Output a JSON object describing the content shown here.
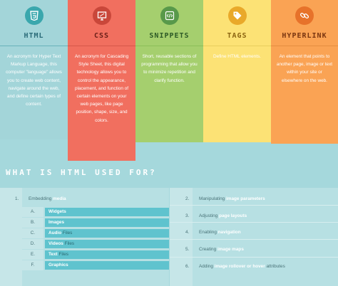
{
  "columns": [
    {
      "title": "HTML",
      "icon": "html5-icon",
      "description": "An acronym for Hyper Text Markup Language, this computer \"language\" allows you to create web content, navigate around the web, and define certain types of content."
    },
    {
      "title": "CSS",
      "icon": "css-monitor-icon",
      "description": "An acronym for Cascading Style Sheet, this digital technology allows you to control the appearance, placement, and function of certain elements on your web pages, like page position, shape, size, and colors."
    },
    {
      "title": "SNIPPETS",
      "icon": "code-icon",
      "description": "Short, reusable sections of programming that allow you to minimize repetition and clarify function."
    },
    {
      "title": "TAGS",
      "icon": "tag-icon",
      "description": "Define HTML elements."
    },
    {
      "title": "HYPERLINK",
      "icon": "link-chain-icon",
      "description": "An element that points to another page, image or text within your site or elsewhere on the web."
    }
  ],
  "section_title": "WHAT IS HTML USED FOR?",
  "uses": {
    "left": {
      "number": "1.",
      "prefix": "Embedding ",
      "highlight": "media",
      "subitems": [
        {
          "letter": "A.",
          "highlight": "Widgets",
          "suffix": ""
        },
        {
          "letter": "B.",
          "highlight": "Images",
          "suffix": ""
        },
        {
          "letter": "C.",
          "highlight": "Audio",
          "suffix": " Files"
        },
        {
          "letter": "D.",
          "highlight": "Videos",
          "suffix": " Files"
        },
        {
          "letter": "E.",
          "highlight": "Text",
          "suffix": " Files"
        },
        {
          "letter": "F.",
          "highlight": "Graphics",
          "suffix": ""
        }
      ]
    },
    "right": [
      {
        "number": "2.",
        "prefix": "Manipulating ",
        "highlight": "image parameters",
        "suffix": ""
      },
      {
        "number": "3.",
        "prefix": "Adjusting ",
        "highlight": "page layouts",
        "suffix": ""
      },
      {
        "number": "4.",
        "prefix": "Enabling ",
        "highlight": "navigation",
        "suffix": ""
      },
      {
        "number": "5.",
        "prefix": "Creating ",
        "highlight": "image maps",
        "suffix": ""
      },
      {
        "number": "6.",
        "prefix": "Adding ",
        "highlight": "image rollover or hover",
        "suffix": " attributes"
      }
    ]
  }
}
